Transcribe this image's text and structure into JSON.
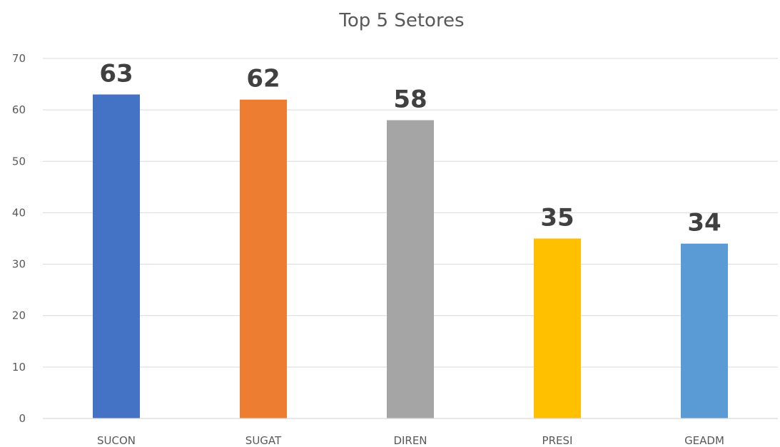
{
  "chart_data": {
    "type": "bar",
    "title": "Top 5 Setores",
    "categories": [
      "SUCON",
      "SUGAT",
      "DIREN",
      "PRESI",
      "GEADM"
    ],
    "values": [
      63,
      62,
      58,
      35,
      34
    ],
    "data_labels": [
      "63",
      "62",
      "58",
      "35",
      "34"
    ],
    "colors": [
      "#4472c4",
      "#ed7d31",
      "#a5a5a5",
      "#ffc000",
      "#5b9bd5"
    ],
    "ylim": [
      0,
      70
    ],
    "yticks": [
      0,
      10,
      20,
      30,
      40,
      50,
      60,
      70
    ],
    "xlabel": "",
    "ylabel": "",
    "grid": true,
    "legend": "none",
    "gridline_color": "#d9d9d9"
  }
}
